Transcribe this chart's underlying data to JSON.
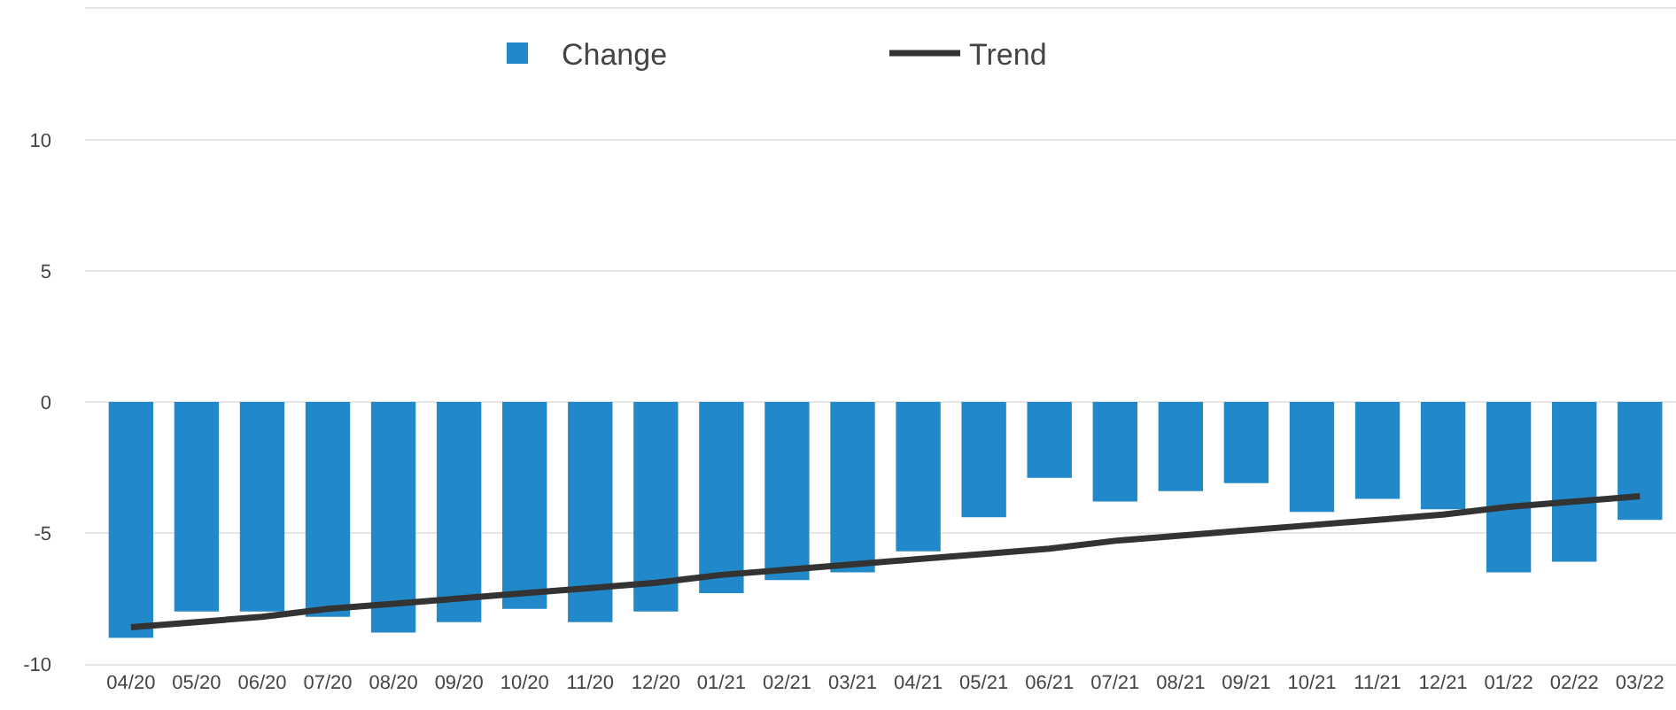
{
  "chart_data": {
    "type": "bar",
    "categories": [
      "04/20",
      "05/20",
      "06/20",
      "07/20",
      "08/20",
      "09/20",
      "10/20",
      "11/20",
      "12/20",
      "01/21",
      "02/21",
      "03/21",
      "04/21",
      "05/21",
      "06/21",
      "07/21",
      "08/21",
      "09/21",
      "10/21",
      "11/21",
      "12/21",
      "01/22",
      "02/22",
      "03/22"
    ],
    "series": [
      {
        "name": "Change",
        "color": "#2189c9",
        "values": [
          -9.0,
          -8.0,
          -8.0,
          -8.2,
          -8.8,
          -8.4,
          -7.9,
          -8.4,
          -8.0,
          -7.3,
          -6.8,
          -6.5,
          -5.7,
          -4.4,
          -2.9,
          -3.8,
          -3.4,
          -3.1,
          -4.2,
          -3.7,
          -4.1,
          -6.5,
          -6.1,
          -4.5
        ]
      },
      {
        "name": "Trend",
        "type": "line",
        "color": "#333333",
        "line_style": "solid",
        "marker": "none",
        "values": [
          -8.6,
          -8.4,
          -8.2,
          -7.9,
          -7.7,
          -7.5,
          -7.3,
          -7.1,
          -6.9,
          -6.6,
          -6.4,
          -6.2,
          -6.0,
          -5.8,
          -5.6,
          -5.3,
          -5.1,
          -4.9,
          -4.7,
          -4.5,
          -4.3,
          -4.0,
          -3.8,
          -3.6
        ]
      }
    ],
    "ylim": [
      -10,
      15
    ],
    "yticks": [
      -10,
      -5,
      0,
      5,
      10,
      {
        "value": 15,
        "label": null
      }
    ],
    "grid": "y",
    "legend": "top"
  }
}
